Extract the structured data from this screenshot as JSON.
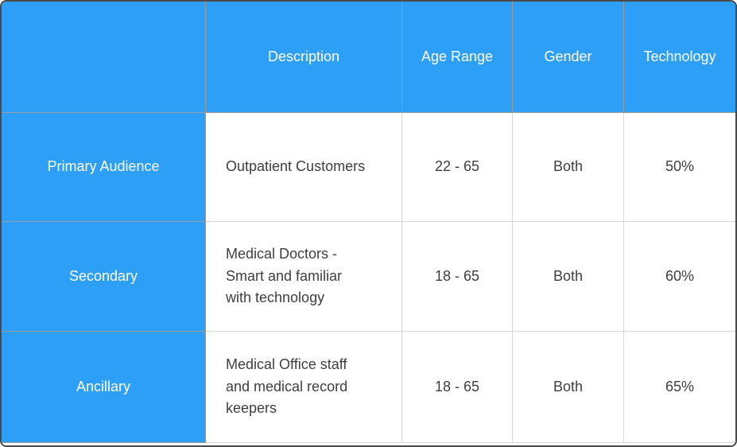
{
  "table": {
    "headers": [
      "",
      "Description",
      "Age Range",
      "Gender",
      "Technology"
    ],
    "rows": [
      {
        "label": "Primary Audience",
        "description": "Outpatient Customers",
        "age_range": "22 - 65",
        "gender": "Both",
        "technology": "50%"
      },
      {
        "label": "Secondary",
        "description": "Medical Doctors -\nSmart and familiar\nwith technology",
        "age_range": "18 - 65",
        "gender": "Both",
        "technology": "60%"
      },
      {
        "label": "Ancillary",
        "description": "Medical Office staff\nand medical record\nkeepers",
        "age_range": "18 - 65",
        "gender": "Both",
        "technology": "65%"
      }
    ]
  },
  "colors": {
    "accent_blue": "#2E9FF7",
    "header_text": "#FFFFFF",
    "body_text": "#3E3E3E",
    "border_light": "#D6D6D6",
    "border_dark": "#9A9A9A",
    "frame": "#4A4A4A"
  }
}
